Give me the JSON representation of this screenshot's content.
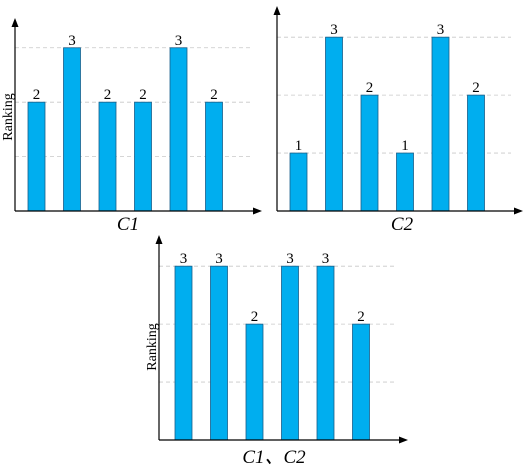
{
  "chart_data": [
    {
      "type": "bar",
      "ylabel": "Ranking",
      "xlabel": "C1",
      "values": [
        2,
        3,
        2,
        2,
        3,
        2
      ],
      "data_labels": [
        "2",
        "3",
        "2",
        "2",
        "3",
        "2"
      ],
      "ylim": [
        0,
        3.4
      ],
      "grid": true,
      "color": "#00aeef"
    },
    {
      "type": "bar",
      "ylabel": "",
      "xlabel": "C2",
      "values": [
        1,
        3,
        2,
        1,
        3,
        2
      ],
      "data_labels": [
        "1",
        "3",
        "2",
        "1",
        "3",
        "2"
      ],
      "ylim": [
        0,
        3.4
      ],
      "grid": true,
      "color": "#00aeef"
    },
    {
      "type": "bar",
      "ylabel": "Ranking",
      "xlabel": "C1、C2",
      "values": [
        3,
        3,
        2,
        3,
        3,
        2
      ],
      "data_labels": [
        "3",
        "3",
        "2",
        "3",
        "3",
        "2"
      ],
      "ylim": [
        0,
        3.4
      ],
      "grid": true,
      "color": "#00aeef"
    }
  ]
}
